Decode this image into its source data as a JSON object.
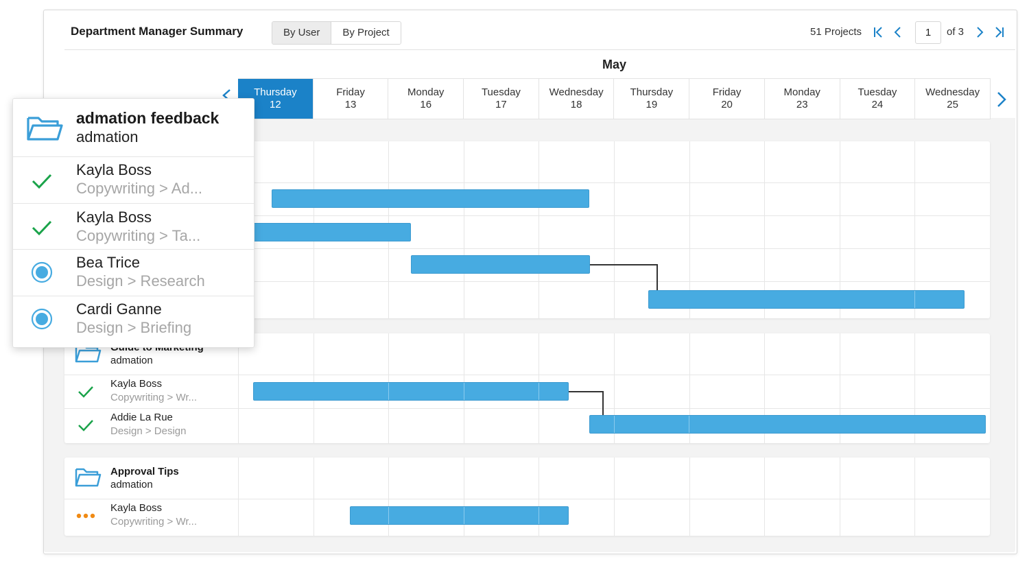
{
  "header": {
    "title": "Department Manager Summary",
    "tabs": [
      {
        "label": "By User",
        "active": true
      },
      {
        "label": "By Project",
        "active": false
      }
    ],
    "project_count": "51 Projects",
    "page_current": "1",
    "page_of": "of 3"
  },
  "timeline": {
    "month": "May",
    "days": [
      {
        "weekday": "Thursday",
        "date": "12",
        "selected": true
      },
      {
        "weekday": "Friday",
        "date": "13"
      },
      {
        "weekday": "Monday",
        "date": "16"
      },
      {
        "weekday": "Tuesday",
        "date": "17"
      },
      {
        "weekday": "Wednesday",
        "date": "18"
      },
      {
        "weekday": "Thursday",
        "date": "19"
      },
      {
        "weekday": "Friday",
        "date": "20"
      },
      {
        "weekday": "Monday",
        "date": "23"
      },
      {
        "weekday": "Tuesday",
        "date": "24"
      },
      {
        "weekday": "Wednesday",
        "date": "25"
      }
    ]
  },
  "popup": {
    "project": {
      "title": "admation feedback",
      "client": "admation"
    },
    "rows": [
      {
        "name": "Kayla Boss",
        "task": "Copywriting > Ad...",
        "status": "complete"
      },
      {
        "name": "Kayla Boss",
        "task": "Copywriting > Ta...",
        "status": "complete"
      },
      {
        "name": "Bea Trice",
        "task": "Design > Research",
        "status": "in-progress"
      },
      {
        "name": "Cardi Ganne",
        "task": "Design > Briefing",
        "status": "in-progress"
      }
    ]
  },
  "projects": [
    {
      "title": "Guide to Marketing",
      "client": "admation",
      "rows": [
        {
          "name": "Kayla Boss",
          "task": "Copywriting > Wr...",
          "status": "complete"
        },
        {
          "name": "Addie La Rue",
          "task": "Design > Design",
          "status": "complete"
        }
      ]
    },
    {
      "title": "Approval Tips",
      "client": "admation",
      "rows": [
        {
          "name": "Kayla Boss",
          "task": "Copywriting > Wr...",
          "status": "pending"
        }
      ]
    }
  ],
  "colors": {
    "accent": "#1b82c8",
    "bar": "#47abe1",
    "complete": "#1aa34a",
    "in_progress": "#47abe1",
    "pending": "#f08a14"
  }
}
